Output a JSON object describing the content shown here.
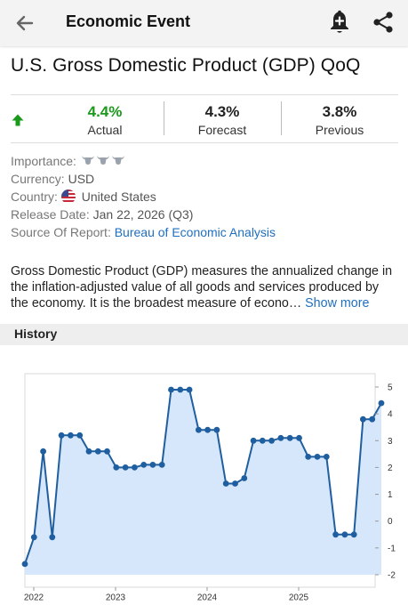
{
  "header": {
    "title": "Economic Event",
    "back_icon": "arrow-left-icon",
    "alert_icon": "bell-plus-icon",
    "share_icon": "share-icon"
  },
  "event": {
    "name": "U.S. Gross Domestic Product (GDP) QoQ"
  },
  "stats": {
    "trend_icon": "arrow-up-icon",
    "actual": {
      "value": "4.4%",
      "label": "Actual",
      "color": "#1a9a1a"
    },
    "forecast": {
      "value": "4.3%",
      "label": "Forecast"
    },
    "previous": {
      "value": "3.8%",
      "label": "Previous"
    }
  },
  "meta": {
    "importance_label": "Importance:",
    "importance_level": 3,
    "importance_max": 3,
    "currency_label": "Currency:",
    "currency_value": "USD",
    "country_label": "Country:",
    "country_value": "United States",
    "country_flag": "us-flag-icon",
    "release_label": "Release Date:",
    "release_value": "Jan 22, 2026 (Q3)",
    "source_label": "Source Of Report:",
    "source_value": "Bureau of Economic Analysis"
  },
  "description": {
    "line1": "Gross Domestic Product (GDP) measures the annualized change in",
    "line2": "the inflation-adjusted value of all goods and services produced by",
    "line3": "the economy. It is the broadest measure of econo…",
    "more_label": "Show more"
  },
  "history": {
    "title": "History"
  },
  "colors": {
    "link": "#1f6fbf",
    "line": "#1f5f9f",
    "area": "#d6e6fb",
    "positive": "#1a9a1a"
  },
  "chart_data": {
    "type": "area",
    "y_axis": {
      "min": -2,
      "max": 5,
      "ticks": [
        5,
        4,
        3,
        2,
        1,
        0,
        -1,
        -2
      ],
      "position": "right"
    },
    "x_axis": {
      "ticks": [
        "2022",
        "2023",
        "2024",
        "2025"
      ]
    },
    "grid": false,
    "series": [
      {
        "values": [
          -1.6,
          -0.6,
          2.6,
          -0.6,
          3.2,
          3.2,
          3.2,
          2.6,
          2.6,
          2.6,
          2.0,
          2.0,
          2.0,
          2.1,
          2.1,
          2.1,
          4.9,
          4.9,
          4.9,
          3.4,
          3.4,
          3.4,
          1.4,
          1.4,
          1.6,
          3.0,
          3.0,
          3.0,
          3.1,
          3.1,
          3.1,
          2.4,
          2.4,
          2.4,
          -0.5,
          -0.5,
          -0.5,
          3.8,
          3.8,
          4.4
        ]
      }
    ]
  }
}
